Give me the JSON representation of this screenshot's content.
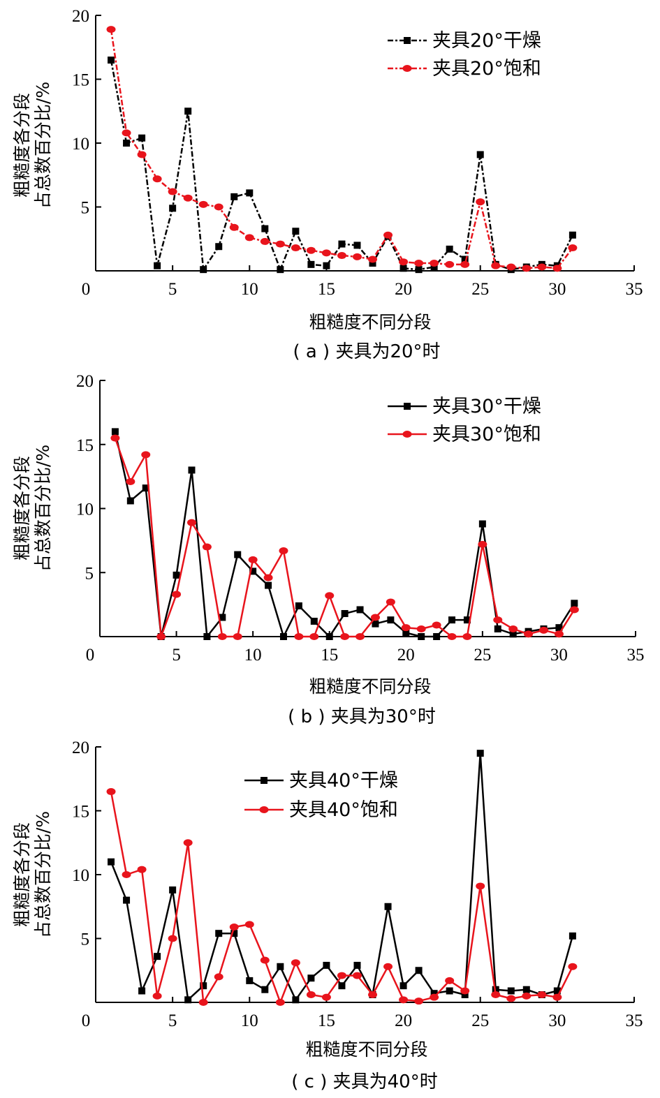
{
  "chart_data": [
    {
      "type": "line",
      "caption": "( a ) 夹具为20°时",
      "xlabel": "粗糙度不同分段",
      "ylabel_line1": "粗糙度各分段",
      "ylabel_line2": "占总数百分比/%",
      "xlim": [
        0,
        35
      ],
      "ylim": [
        0,
        20
      ],
      "xticks": [
        0,
        5,
        10,
        15,
        20,
        25,
        30,
        35
      ],
      "yticks": [
        5,
        10,
        15,
        20
      ],
      "legend_position": "top-right",
      "x": [
        1,
        2,
        3,
        4,
        5,
        6,
        7,
        8,
        9,
        10,
        11,
        12,
        13,
        14,
        15,
        16,
        17,
        18,
        19,
        20,
        21,
        22,
        23,
        24,
        25,
        26,
        27,
        28,
        29,
        30,
        31
      ],
      "series": [
        {
          "name": "夹具20°干燥",
          "color": "#000000",
          "marker": "square",
          "dash": "8,3,3,3",
          "values": [
            16.5,
            10.0,
            10.4,
            0.4,
            4.9,
            12.5,
            0.1,
            1.9,
            5.8,
            6.1,
            3.3,
            0.1,
            3.1,
            0.5,
            0.4,
            2.1,
            2.0,
            0.6,
            2.7,
            0.2,
            0.1,
            0.3,
            1.7,
            0.9,
            9.1,
            0.5,
            0.1,
            0.3,
            0.5,
            0.4,
            2.8
          ]
        },
        {
          "name": "夹具20°饱和",
          "color": "#e8141c",
          "marker": "circle",
          "dash": "8,3,3,3",
          "values": [
            18.9,
            10.8,
            9.1,
            7.2,
            6.2,
            5.7,
            5.2,
            5.0,
            3.4,
            2.6,
            2.3,
            2.1,
            1.8,
            1.6,
            1.4,
            1.2,
            1.1,
            0.9,
            2.8,
            0.7,
            0.6,
            0.6,
            0.5,
            0.5,
            5.4,
            0.4,
            0.3,
            0.2,
            0.3,
            0.2,
            1.8
          ]
        }
      ]
    },
    {
      "type": "line",
      "caption": "( b ) 夹具为30°时",
      "xlabel": "粗糙度不同分段",
      "ylabel_line1": "粗糙度各分段",
      "ylabel_line2": "占总数百分比/%",
      "xlim": [
        0,
        35
      ],
      "ylim": [
        0,
        20
      ],
      "xticks": [
        0,
        5,
        10,
        15,
        20,
        25,
        30,
        35
      ],
      "yticks": [
        5,
        10,
        15,
        20
      ],
      "legend_position": "top-right",
      "x": [
        1,
        2,
        3,
        4,
        5,
        6,
        7,
        8,
        9,
        10,
        11,
        12,
        13,
        14,
        15,
        16,
        17,
        18,
        19,
        20,
        21,
        22,
        23,
        24,
        25,
        26,
        27,
        28,
        29,
        30,
        31
      ],
      "series": [
        {
          "name": "夹具30°干燥",
          "color": "#000000",
          "marker": "square",
          "dash": "",
          "values": [
            16.0,
            10.6,
            11.6,
            0.0,
            4.8,
            13.0,
            0.0,
            1.5,
            6.4,
            5.1,
            4.0,
            0.0,
            2.4,
            1.2,
            0.0,
            1.8,
            2.1,
            1.0,
            1.3,
            0.3,
            0.0,
            0.0,
            1.3,
            1.3,
            8.8,
            0.6,
            0.2,
            0.4,
            0.6,
            0.7,
            2.6
          ]
        },
        {
          "name": "夹具30°饱和",
          "color": "#e8141c",
          "marker": "circle",
          "dash": "",
          "values": [
            15.5,
            12.1,
            14.2,
            0.0,
            3.3,
            8.9,
            7.0,
            0.0,
            0.0,
            6.0,
            4.6,
            6.7,
            0.0,
            0.0,
            3.2,
            0.0,
            0.0,
            1.5,
            2.7,
            0.7,
            0.6,
            0.9,
            0.0,
            0.0,
            7.2,
            1.3,
            0.6,
            0.2,
            0.5,
            0.2,
            2.1
          ]
        }
      ]
    },
    {
      "type": "line",
      "caption": "( c ) 夹具为40°时",
      "xlabel": "粗糙度不同分段",
      "ylabel_line1": "粗糙度各分段",
      "ylabel_line2": "占总数百分比/%",
      "xlim": [
        0,
        35
      ],
      "ylim": [
        0,
        20
      ],
      "xticks": [
        0,
        5,
        10,
        15,
        20,
        25,
        30,
        35
      ],
      "yticks": [
        5,
        10,
        15,
        20
      ],
      "legend_position": "top-center",
      "x": [
        1,
        2,
        3,
        4,
        5,
        6,
        7,
        8,
        9,
        10,
        11,
        12,
        13,
        14,
        15,
        16,
        17,
        18,
        19,
        20,
        21,
        22,
        23,
        24,
        25,
        26,
        27,
        28,
        29,
        30,
        31
      ],
      "series": [
        {
          "name": "夹具40°干燥",
          "color": "#000000",
          "marker": "square",
          "dash": "",
          "values": [
            11.0,
            8.0,
            0.9,
            3.6,
            8.8,
            0.2,
            1.3,
            5.4,
            5.4,
            1.7,
            1.0,
            2.8,
            0.2,
            1.9,
            2.9,
            1.3,
            2.9,
            0.6,
            7.5,
            1.3,
            2.5,
            0.7,
            0.9,
            0.6,
            19.5,
            1.0,
            0.9,
            1.0,
            0.6,
            0.9,
            5.2
          ]
        },
        {
          "name": "夹具40°饱和",
          "color": "#e8141c",
          "marker": "circle",
          "dash": "",
          "values": [
            16.5,
            10.0,
            10.4,
            0.5,
            5.0,
            12.5,
            0.0,
            2.0,
            5.9,
            6.1,
            3.3,
            0.0,
            3.1,
            0.6,
            0.4,
            2.1,
            2.1,
            0.6,
            2.8,
            0.2,
            0.1,
            0.4,
            1.7,
            0.9,
            9.1,
            0.6,
            0.3,
            0.5,
            0.6,
            0.4,
            2.8
          ]
        }
      ]
    }
  ]
}
